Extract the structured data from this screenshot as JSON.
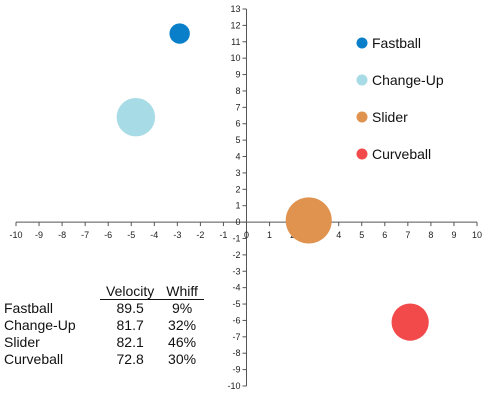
{
  "chart_data": {
    "type": "scatter",
    "title": "",
    "xlabel": "",
    "ylabel": "",
    "xlim": [
      -10,
      10
    ],
    "ylim": [
      -10,
      13
    ],
    "x_ticks": [
      "-10",
      "-9",
      "-8",
      "-7",
      "-6",
      "-5",
      "-4",
      "-3",
      "-2",
      "-1",
      "0",
      "1",
      "2",
      "3",
      "4",
      "5",
      "6",
      "7",
      "8",
      "9",
      "10"
    ],
    "y_ticks": [
      "-10",
      "-9",
      "-8",
      "-7",
      "-6",
      "-5",
      "-4",
      "-3",
      "-2",
      "-1",
      "0",
      "1",
      "2",
      "3",
      "4",
      "5",
      "6",
      "7",
      "8",
      "9",
      "10",
      "11",
      "12",
      "13"
    ],
    "grid": false,
    "legend_position": "right",
    "series": [
      {
        "name": "Fastball",
        "x": -2.9,
        "y": 11.5,
        "size": 9,
        "color": "#0a7fc9"
      },
      {
        "name": "Change-Up",
        "x": -4.8,
        "y": 6.4,
        "size": 32,
        "color": "#a7dbe6"
      },
      {
        "name": "Slider",
        "x": 2.7,
        "y": 0.1,
        "size": 46,
        "color": "#e0934f"
      },
      {
        "name": "Curveball",
        "x": 7.1,
        "y": -6.1,
        "size": 30,
        "color": "#f24a4a"
      }
    ]
  },
  "table": {
    "headers": [
      "",
      "Velocity",
      "Whiff"
    ],
    "rows": [
      [
        "Fastball",
        "89.5",
        "9%"
      ],
      [
        "Change-Up",
        "81.7",
        "32%"
      ],
      [
        "Slider",
        "82.1",
        "46%"
      ],
      [
        "Curveball",
        "72.8",
        "30%"
      ]
    ]
  }
}
